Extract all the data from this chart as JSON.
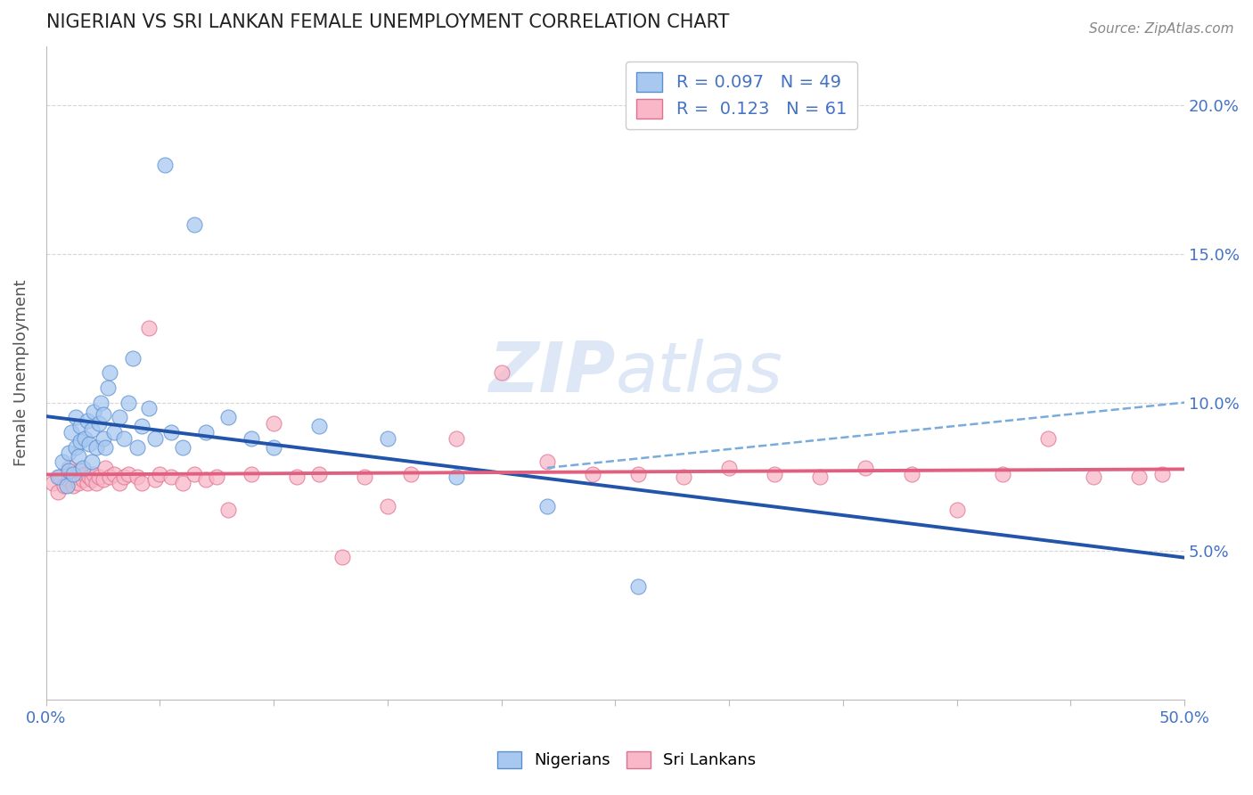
{
  "title": "NIGERIAN VS SRI LANKAN FEMALE UNEMPLOYMENT CORRELATION CHART",
  "source_text": "Source: ZipAtlas.com",
  "ylabel": "Female Unemployment",
  "xlim": [
    0.0,
    0.5
  ],
  "ylim": [
    0.0,
    0.22
  ],
  "xticks": [
    0.0,
    0.05,
    0.1,
    0.15,
    0.2,
    0.25,
    0.3,
    0.35,
    0.4,
    0.45,
    0.5
  ],
  "yticks_right": [
    0.05,
    0.1,
    0.15,
    0.2
  ],
  "ytick_right_labels": [
    "5.0%",
    "10.0%",
    "15.0%",
    "20.0%"
  ],
  "nigerian_R": 0.097,
  "nigerian_N": 49,
  "srilankan_R": 0.123,
  "srilankan_N": 61,
  "blue_fill": "#a8c8f0",
  "blue_edge": "#5a8fd0",
  "blue_line": "#2255aa",
  "blue_dash": "#7aabdd",
  "pink_fill": "#f8b8c8",
  "pink_edge": "#e07090",
  "pink_line": "#e06080",
  "watermark_color": "#c8d8f0",
  "nigerian_x": [
    0.005,
    0.007,
    0.009,
    0.01,
    0.01,
    0.011,
    0.012,
    0.013,
    0.013,
    0.014,
    0.015,
    0.015,
    0.016,
    0.017,
    0.018,
    0.019,
    0.02,
    0.02,
    0.021,
    0.022,
    0.023,
    0.024,
    0.025,
    0.025,
    0.026,
    0.027,
    0.028,
    0.03,
    0.032,
    0.034,
    0.036,
    0.038,
    0.04,
    0.042,
    0.045,
    0.048,
    0.052,
    0.055,
    0.06,
    0.065,
    0.07,
    0.08,
    0.09,
    0.1,
    0.12,
    0.15,
    0.18,
    0.22,
    0.26
  ],
  "nigerian_y": [
    0.075,
    0.08,
    0.072,
    0.077,
    0.083,
    0.09,
    0.076,
    0.085,
    0.095,
    0.082,
    0.087,
    0.092,
    0.078,
    0.088,
    0.094,
    0.086,
    0.08,
    0.091,
    0.097,
    0.085,
    0.093,
    0.1,
    0.088,
    0.096,
    0.085,
    0.105,
    0.11,
    0.09,
    0.095,
    0.088,
    0.1,
    0.115,
    0.085,
    0.092,
    0.098,
    0.088,
    0.18,
    0.09,
    0.085,
    0.16,
    0.09,
    0.095,
    0.088,
    0.085,
    0.092,
    0.088,
    0.075,
    0.065,
    0.038
  ],
  "srilankan_x": [
    0.003,
    0.005,
    0.006,
    0.008,
    0.01,
    0.01,
    0.012,
    0.013,
    0.014,
    0.015,
    0.016,
    0.017,
    0.018,
    0.019,
    0.02,
    0.021,
    0.022,
    0.023,
    0.025,
    0.026,
    0.028,
    0.03,
    0.032,
    0.034,
    0.036,
    0.04,
    0.042,
    0.045,
    0.048,
    0.05,
    0.055,
    0.06,
    0.065,
    0.07,
    0.075,
    0.08,
    0.09,
    0.1,
    0.11,
    0.12,
    0.13,
    0.14,
    0.15,
    0.16,
    0.18,
    0.2,
    0.22,
    0.24,
    0.26,
    0.28,
    0.3,
    0.32,
    0.34,
    0.36,
    0.38,
    0.4,
    0.42,
    0.44,
    0.46,
    0.48,
    0.49
  ],
  "srilankan_y": [
    0.073,
    0.07,
    0.075,
    0.072,
    0.074,
    0.078,
    0.072,
    0.075,
    0.073,
    0.077,
    0.074,
    0.076,
    0.073,
    0.075,
    0.074,
    0.076,
    0.073,
    0.075,
    0.074,
    0.078,
    0.075,
    0.076,
    0.073,
    0.075,
    0.076,
    0.075,
    0.073,
    0.125,
    0.074,
    0.076,
    0.075,
    0.073,
    0.076,
    0.074,
    0.075,
    0.064,
    0.076,
    0.093,
    0.075,
    0.076,
    0.048,
    0.075,
    0.065,
    0.076,
    0.088,
    0.11,
    0.08,
    0.076,
    0.076,
    0.075,
    0.078,
    0.076,
    0.075,
    0.078,
    0.076,
    0.064,
    0.076,
    0.088,
    0.075,
    0.075,
    0.076
  ]
}
